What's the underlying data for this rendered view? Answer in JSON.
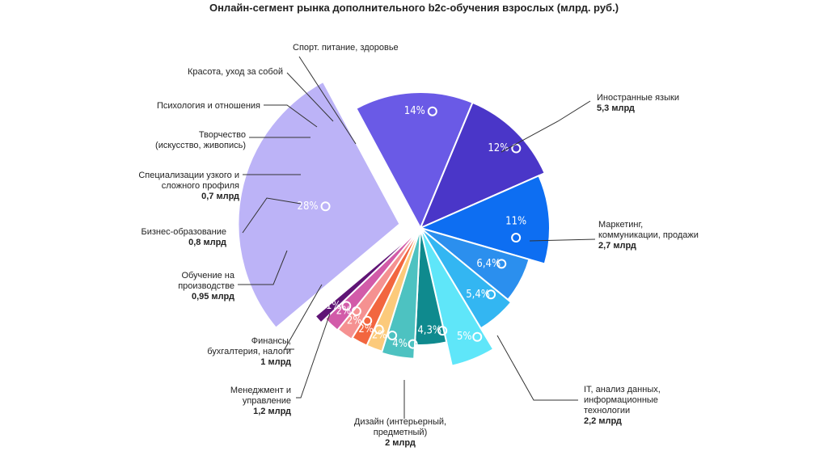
{
  "chart_data": {
    "type": "pie",
    "title": "Онлайн-сегмент рынка дополнительного b2c-обучения взрослых  (млрд. руб.)",
    "slices": [
      {
        "pct_label": "28%",
        "value": 28,
        "label": [
          "Иностранные языки"
        ],
        "amount": "5,3 млрд",
        "color": "#bcb3f7",
        "text_color": "#ffffff"
      },
      {
        "pct_label": "14%",
        "value": 14,
        "label": [
          "Маркетинг,",
          "коммуникации, продажи"
        ],
        "amount": "2,7 млрд",
        "color": "#6a5ae6",
        "text_color": "#ffffff"
      },
      {
        "pct_label": "12%",
        "value": 12,
        "label": [
          "IT, анализ данных,",
          "информационные",
          "технологии"
        ],
        "amount": "2,2 млрд",
        "color": "#4a36c8",
        "text_color": "#ffffff"
      },
      {
        "pct_label": "11%",
        "value": 11,
        "label": [
          "Дизайн (интерьерный,",
          "предметный)"
        ],
        "amount": "2 млрд",
        "color": "#0d6ef2",
        "text_color": "#ffffff"
      },
      {
        "pct_label": "6,4%",
        "value": 6.4,
        "label": [
          "Менеджмент и",
          "управление"
        ],
        "amount": "1,2 млрд",
        "color": "#2b8fee",
        "text_color": "#ffffff"
      },
      {
        "pct_label": "5,4%",
        "value": 5.4,
        "label": [
          "Финансы,",
          "бухгалтерия, налоги"
        ],
        "amount": "1 млрд",
        "color": "#33b6f2",
        "text_color": "#ffffff"
      },
      {
        "pct_label": "5%",
        "value": 5,
        "label": [
          "Обучение на",
          "производстве"
        ],
        "amount": "0,95 млрд",
        "color": "#5fe6f9",
        "text_color": "#ffffff"
      },
      {
        "pct_label": "4,3%",
        "value": 4.3,
        "label": [
          "Бизнес-образование"
        ],
        "amount": "0,8 млрд",
        "color": "#0f8a8e",
        "text_color": "#ffffff"
      },
      {
        "pct_label": "4%",
        "value": 4,
        "label": [
          "Специализации узкого и",
          "сложного профиля"
        ],
        "amount": "0,7 млрд",
        "color": "#4dc2c1",
        "text_color": "#ffffff"
      },
      {
        "pct_label": "2%",
        "value": 2,
        "label": [
          "Творчество",
          "(искусство, живопись)"
        ],
        "amount": "",
        "color": "#fcca7b",
        "text_color": "#ffffff"
      },
      {
        "pct_label": "2%",
        "value": 2,
        "label": [
          "Психология и отношения"
        ],
        "amount": "",
        "color": "#f2663f",
        "text_color": "#ffffff"
      },
      {
        "pct_label": "2%",
        "value": 2,
        "label": [
          "Красота, уход за собой"
        ],
        "amount": "",
        "color": "#f59191",
        "text_color": "#ffffff"
      },
      {
        "pct_label": "2%",
        "value": 2,
        "label": [],
        "amount": "",
        "color": "#d25ba9",
        "text_color": "#ffffff"
      },
      {
        "pct_label": "1%",
        "value": 1,
        "label": [
          "Спорт. питание, здоровье"
        ],
        "amount": "",
        "color": "#5f1475",
        "text_color": "#ffffff"
      }
    ]
  }
}
